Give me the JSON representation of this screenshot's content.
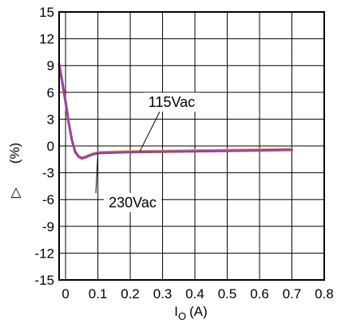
{
  "chart_data": {
    "type": "line",
    "xlabel_main": "I",
    "xlabel_sub": "O",
    "xlabel_unit": "(A)",
    "ylabel_symbol": "△",
    "ylabel_unit": "(%)",
    "xlim": [
      -0.02,
      0.8
    ],
    "ylim": [
      -15,
      15
    ],
    "x_ticks": [
      "0",
      "0.1",
      "0.2",
      "0.3",
      "0.4",
      "0.5",
      "0.6",
      "0.7",
      "0.8"
    ],
    "y_ticks": [
      "15",
      "12",
      "9",
      "6",
      "3",
      "0",
      "-3",
      "-6",
      "-9",
      "-12",
      "-15"
    ],
    "grid": true,
    "series": [
      {
        "name": "115Vac",
        "color": "#d4a84a",
        "x": [
          -0.02,
          -0.01,
          0.0,
          0.01,
          0.02,
          0.03,
          0.04,
          0.05,
          0.06,
          0.08,
          0.1,
          0.15,
          0.2,
          0.3,
          0.4,
          0.5,
          0.6,
          0.7
        ],
        "y": [
          9.0,
          7.0,
          4.8,
          2.5,
          0.6,
          -0.6,
          -1.1,
          -1.3,
          -1.2,
          -0.9,
          -0.7,
          -0.65,
          -0.6,
          -0.55,
          -0.5,
          -0.45,
          -0.4,
          -0.35
        ]
      },
      {
        "name": "230Vac",
        "color": "#9b3fa4",
        "x": [
          -0.02,
          -0.01,
          0.0,
          0.01,
          0.02,
          0.03,
          0.04,
          0.05,
          0.06,
          0.08,
          0.1,
          0.15,
          0.2,
          0.3,
          0.4,
          0.5,
          0.6,
          0.7
        ],
        "y": [
          9.2,
          7.2,
          5.0,
          2.6,
          0.6,
          -0.7,
          -1.2,
          -1.4,
          -1.3,
          -1.0,
          -0.8,
          -0.75,
          -0.7,
          -0.65,
          -0.6,
          -0.55,
          -0.5,
          -0.45
        ]
      }
    ],
    "annotations": [
      {
        "text": "115Vac",
        "target_series": 0,
        "target_x": 0.23
      },
      {
        "text": "230Vac",
        "target_series": 1,
        "target_x": 0.1
      }
    ]
  }
}
